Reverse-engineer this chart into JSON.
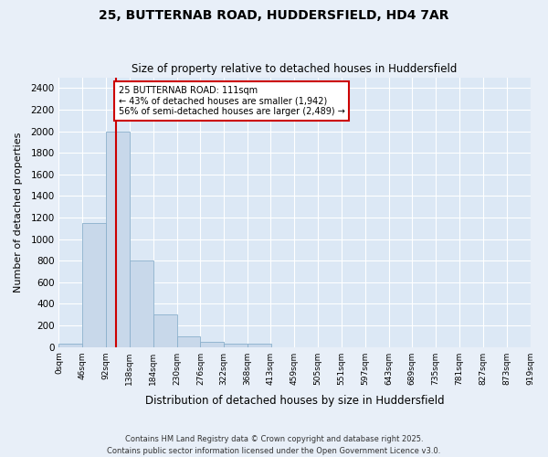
{
  "title": "25, BUTTERNAB ROAD, HUDDERSFIELD, HD4 7AR",
  "subtitle": "Size of property relative to detached houses in Huddersfield",
  "xlabel": "Distribution of detached houses by size in Huddersfield",
  "ylabel": "Number of detached properties",
  "bar_color": "#c8d8ea",
  "bar_edge_color": "#8ab0cc",
  "plot_bg_color": "#dce8f5",
  "fig_bg_color": "#e8eff8",
  "annotation_box_color": "#cc0000",
  "annotation_text": "25 BUTTERNAB ROAD: 111sqm\n← 43% of detached houses are smaller (1,942)\n56% of semi-detached houses are larger (2,489) →",
  "property_size": 111,
  "vline_color": "#cc0000",
  "footer": "Contains HM Land Registry data © Crown copyright and database right 2025.\nContains public sector information licensed under the Open Government Licence v3.0.",
  "bin_edges": [
    0,
    46,
    92,
    138,
    184,
    230,
    276,
    322,
    368,
    413,
    459,
    505,
    551,
    597,
    643,
    689,
    735,
    781,
    827,
    873,
    919
  ],
  "bin_labels": [
    "0sqm",
    "46sqm",
    "92sqm",
    "138sqm",
    "184sqm",
    "230sqm",
    "276sqm",
    "322sqm",
    "368sqm",
    "413sqm",
    "459sqm",
    "505sqm",
    "551sqm",
    "597sqm",
    "643sqm",
    "689sqm",
    "735sqm",
    "781sqm",
    "827sqm",
    "873sqm",
    "919sqm"
  ],
  "bar_heights": [
    30,
    1150,
    2000,
    800,
    300,
    100,
    45,
    35,
    30,
    0,
    0,
    0,
    0,
    0,
    0,
    0,
    0,
    0,
    0,
    0
  ],
  "ylim": [
    0,
    2500
  ],
  "yticks": [
    0,
    200,
    400,
    600,
    800,
    1000,
    1200,
    1400,
    1600,
    1800,
    2000,
    2200,
    2400
  ],
  "figsize": [
    6.0,
    5.0
  ],
  "dpi": 100
}
